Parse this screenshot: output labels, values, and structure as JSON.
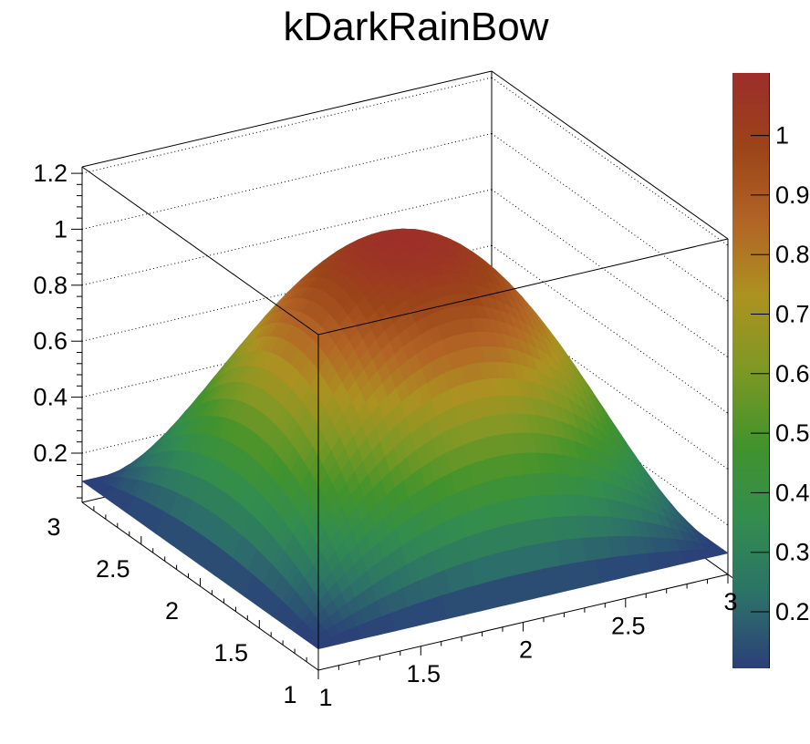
{
  "title": "kDarkRainBow",
  "colors": {
    "background": "#ffffff",
    "line": "#000000",
    "text": "#000000"
  },
  "chart_data": {
    "type": "surface3d",
    "title": "kDarkRainBow",
    "function": "z = 0.1 + (1-(x-2)^2)*(1-(y-2)^2)",
    "function_params": {
      "offset": 0.1,
      "x0": 2,
      "y0": 2
    },
    "x_range": [
      1,
      3
    ],
    "y_range": [
      1,
      3
    ],
    "z_surface_range": [
      0.1,
      1.1
    ],
    "frame_z_range": [
      0.024,
      1.223
    ],
    "x_ticks": [
      1,
      1.5,
      2,
      2.5,
      3
    ],
    "x_tick_labels": [
      "1",
      "1.5",
      "2",
      "2.5",
      "3"
    ],
    "y_ticks": [
      3,
      2.5,
      2,
      1.5,
      1
    ],
    "y_tick_labels": [
      "3",
      "2.5",
      "2",
      "1.5",
      "1"
    ],
    "z_ticks": [
      0.2,
      0.4,
      0.6,
      0.8,
      1.0,
      1.2
    ],
    "z_tick_labels": [
      "0.2",
      "0.4",
      "0.6",
      "0.8",
      "1",
      "1.2"
    ],
    "z_gridlines": [
      0.2,
      0.4,
      0.6,
      0.8,
      1.0,
      1.2
    ],
    "grid_on": true,
    "palette_name": "kDarkRainBow",
    "palette_range": [
      0.105,
      1.105
    ],
    "palette_ticks": [
      0.2,
      0.3,
      0.4,
      0.5,
      0.6,
      0.7,
      0.8,
      0.9,
      1.0
    ],
    "palette_tick_labels": [
      "0.2",
      "0.3",
      "0.4",
      "0.5",
      "0.6",
      "0.7",
      "0.8",
      "0.9",
      "1"
    ],
    "palette_stops_rgb": [
      [
        43,
        63,
        121
      ],
      [
        44,
        114,
        104
      ],
      [
        50,
        141,
        78
      ],
      [
        66,
        147,
        44
      ],
      [
        125,
        152,
        36
      ],
      [
        172,
        146,
        33
      ],
      [
        178,
        100,
        37
      ],
      [
        155,
        68,
        25
      ],
      [
        157,
        45,
        43
      ]
    ],
    "legend_position": "right",
    "sample_x": [
      1,
      1.25,
      1.5,
      1.75,
      2,
      2.25,
      2.5,
      2.75,
      3
    ],
    "sample_y": [
      1,
      1.25,
      1.5,
      1.75,
      2,
      2.25,
      2.5,
      2.75,
      3
    ],
    "sample_z": [
      [
        0.1,
        0.1,
        0.1,
        0.1,
        0.1,
        0.1,
        0.1,
        0.1,
        0.1
      ],
      [
        0.1,
        0.2914,
        0.4281,
        0.5102,
        0.5375,
        0.5102,
        0.4281,
        0.2914,
        0.1
      ],
      [
        0.1,
        0.4281,
        0.6625,
        0.8031,
        0.85,
        0.8031,
        0.6625,
        0.4281,
        0.1
      ],
      [
        0.1,
        0.5102,
        0.8031,
        0.9789,
        1.0375,
        0.9789,
        0.8031,
        0.5102,
        0.1
      ],
      [
        0.1,
        0.5375,
        0.85,
        1.0375,
        1.1,
        1.0375,
        0.85,
        0.5375,
        0.1
      ],
      [
        0.1,
        0.5102,
        0.8031,
        0.9789,
        1.0375,
        0.9789,
        0.8031,
        0.5102,
        0.1
      ],
      [
        0.1,
        0.4281,
        0.6625,
        0.8031,
        0.85,
        0.8031,
        0.6625,
        0.4281,
        0.1
      ],
      [
        0.1,
        0.2914,
        0.4281,
        0.5102,
        0.5375,
        0.5102,
        0.4281,
        0.2914,
        0.1
      ],
      [
        0.1,
        0.1,
        0.1,
        0.1,
        0.1,
        0.1,
        0.1,
        0.1,
        0.1
      ]
    ]
  }
}
